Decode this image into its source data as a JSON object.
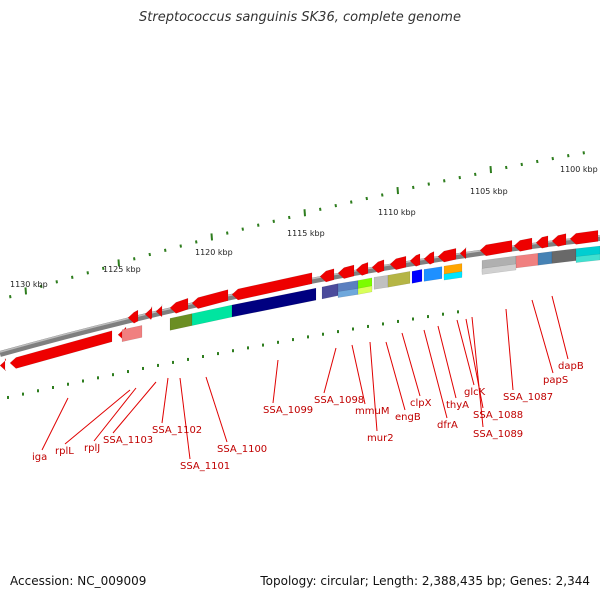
{
  "title": "Streptococcus sanguinis SK36, complete genome",
  "footer": {
    "accession": "Accession: NC_009009",
    "stats": "Topology: circular; Length: 2,388,435 bp; Genes: 2,344"
  },
  "colors": {
    "backbone": "#808080",
    "ticks": "#2e7d1e",
    "label_text": "#c00000",
    "cds_arrow": "#ee0000"
  },
  "ruler": [
    "1100 kbp",
    "1105 kbp",
    "1110 kbp",
    "1115 kbp",
    "1120 kbp",
    "1125 kbp",
    "1130 kbp"
  ],
  "gene_labels": [
    "iga",
    "rplL",
    "rplJ",
    "SSA_1103",
    "SSA_1102",
    "SSA_1101",
    "SSA_1100",
    "SSA_1099",
    "SSA_1098",
    "mmuM",
    "mur2",
    "engB",
    "clpX",
    "dfrA",
    "thyA",
    "glcK",
    "SSA_1088",
    "SSA_1089",
    "SSA_1087",
    "papS",
    "dapB"
  ]
}
